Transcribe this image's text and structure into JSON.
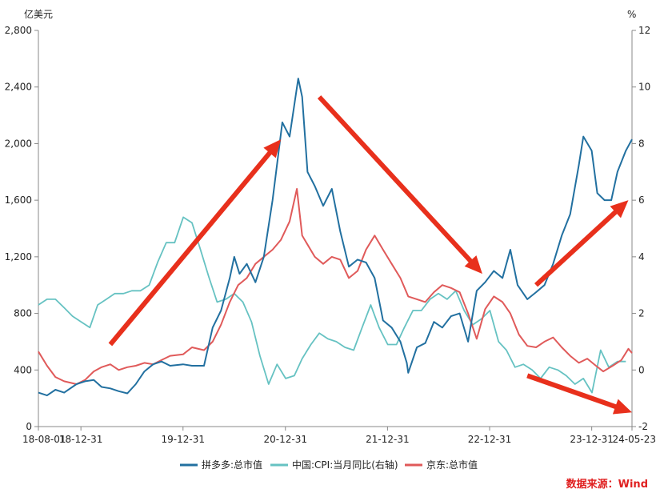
{
  "chart_data": {
    "type": "line",
    "left_unit": "亿美元",
    "right_unit": "%",
    "x_tick_labels": [
      "18-08-01",
      "18-12-31",
      "19-12-31",
      "20-12-31",
      "21-12-31",
      "22-12-31",
      "23-12-31",
      "24-05-23"
    ],
    "x_tick_dates": [
      "2018-08-01",
      "2018-12-31",
      "2019-12-31",
      "2020-12-31",
      "2021-12-31",
      "2022-12-31",
      "2023-12-31",
      "2024-05-23"
    ],
    "x_range": [
      "2018-08-01",
      "2024-05-23"
    ],
    "y_left_ticks": [
      "0",
      "400",
      "800",
      "1,200",
      "1,600",
      "2,000",
      "2,400",
      "2,800"
    ],
    "y_left_range": [
      0,
      2800
    ],
    "y_right_ticks": [
      "-2",
      "0",
      "2",
      "4",
      "6",
      "8",
      "10",
      "12"
    ],
    "y_right_range": [
      -2,
      12
    ],
    "grid": false,
    "legend_position": "bottom",
    "source": "数据来源：Wind",
    "series": [
      {
        "name": "拼多多:总市值",
        "axis": "left",
        "color": "#2270a0",
        "points": [
          [
            "2018-08-01",
            240
          ],
          [
            "2018-09-01",
            220
          ],
          [
            "2018-10-01",
            260
          ],
          [
            "2018-11-01",
            240
          ],
          [
            "2018-12-15",
            300
          ],
          [
            "2019-01-15",
            320
          ],
          [
            "2019-02-15",
            330
          ],
          [
            "2019-03-15",
            280
          ],
          [
            "2019-04-15",
            270
          ],
          [
            "2019-05-15",
            250
          ],
          [
            "2019-06-15",
            235
          ],
          [
            "2019-07-15",
            300
          ],
          [
            "2019-08-15",
            390
          ],
          [
            "2019-09-15",
            440
          ],
          [
            "2019-10-15",
            460
          ],
          [
            "2019-11-15",
            430
          ],
          [
            "2019-12-31",
            440
          ],
          [
            "2020-02-01",
            430
          ],
          [
            "2020-03-15",
            430
          ],
          [
            "2020-04-15",
            700
          ],
          [
            "2020-05-15",
            820
          ],
          [
            "2020-06-15",
            1050
          ],
          [
            "2020-07-01",
            1200
          ],
          [
            "2020-07-20",
            1080
          ],
          [
            "2020-08-15",
            1150
          ],
          [
            "2020-09-15",
            1020
          ],
          [
            "2020-10-15",
            1200
          ],
          [
            "2020-11-15",
            1600
          ],
          [
            "2020-12-20",
            2150
          ],
          [
            "2021-01-15",
            2050
          ],
          [
            "2021-02-15",
            2460
          ],
          [
            "2021-03-01",
            2330
          ],
          [
            "2021-03-20",
            1800
          ],
          [
            "2021-04-15",
            1700
          ],
          [
            "2021-05-15",
            1560
          ],
          [
            "2021-06-15",
            1680
          ],
          [
            "2021-07-15",
            1380
          ],
          [
            "2021-08-15",
            1130
          ],
          [
            "2021-09-15",
            1180
          ],
          [
            "2021-10-15",
            1160
          ],
          [
            "2021-11-15",
            1050
          ],
          [
            "2021-12-15",
            750
          ],
          [
            "2022-01-15",
            700
          ],
          [
            "2022-02-15",
            600
          ],
          [
            "2022-03-10",
            450
          ],
          [
            "2022-03-15",
            380
          ],
          [
            "2022-04-15",
            560
          ],
          [
            "2022-05-15",
            590
          ],
          [
            "2022-06-15",
            740
          ],
          [
            "2022-07-15",
            700
          ],
          [
            "2022-08-15",
            780
          ],
          [
            "2022-09-15",
            800
          ],
          [
            "2022-10-15",
            600
          ],
          [
            "2022-11-15",
            960
          ],
          [
            "2022-12-15",
            1020
          ],
          [
            "2023-01-15",
            1100
          ],
          [
            "2023-02-15",
            1050
          ],
          [
            "2023-03-15",
            1250
          ],
          [
            "2023-04-10",
            1000
          ],
          [
            "2023-05-15",
            900
          ],
          [
            "2023-06-15",
            950
          ],
          [
            "2023-07-15",
            1000
          ],
          [
            "2023-08-15",
            1150
          ],
          [
            "2023-09-15",
            1350
          ],
          [
            "2023-10-15",
            1500
          ],
          [
            "2023-11-15",
            1850
          ],
          [
            "2023-12-01",
            2050
          ],
          [
            "2023-12-31",
            1950
          ],
          [
            "2024-01-20",
            1650
          ],
          [
            "2024-02-15",
            1600
          ],
          [
            "2024-03-10",
            1600
          ],
          [
            "2024-04-01",
            1800
          ],
          [
            "2024-05-01",
            1950
          ],
          [
            "2024-05-23",
            2030
          ]
        ]
      },
      {
        "name": "中国:CPI:当月同比(右轴)",
        "axis": "right",
        "color": "#66c2c2",
        "points": [
          [
            "2018-08-01",
            2.3
          ],
          [
            "2018-09-01",
            2.5
          ],
          [
            "2018-10-01",
            2.5
          ],
          [
            "2018-11-01",
            2.2
          ],
          [
            "2018-12-01",
            1.9
          ],
          [
            "2019-01-01",
            1.7
          ],
          [
            "2019-02-01",
            1.5
          ],
          [
            "2019-03-01",
            2.3
          ],
          [
            "2019-04-01",
            2.5
          ],
          [
            "2019-05-01",
            2.7
          ],
          [
            "2019-06-01",
            2.7
          ],
          [
            "2019-07-01",
            2.8
          ],
          [
            "2019-08-01",
            2.8
          ],
          [
            "2019-09-01",
            3.0
          ],
          [
            "2019-10-01",
            3.8
          ],
          [
            "2019-11-01",
            4.5
          ],
          [
            "2019-12-01",
            4.5
          ],
          [
            "2020-01-01",
            5.4
          ],
          [
            "2020-02-01",
            5.2
          ],
          [
            "2020-03-01",
            4.3
          ],
          [
            "2020-04-01",
            3.3
          ],
          [
            "2020-05-01",
            2.4
          ],
          [
            "2020-06-01",
            2.5
          ],
          [
            "2020-07-01",
            2.7
          ],
          [
            "2020-08-01",
            2.4
          ],
          [
            "2020-09-01",
            1.7
          ],
          [
            "2020-10-01",
            0.5
          ],
          [
            "2020-11-01",
            -0.5
          ],
          [
            "2020-12-01",
            0.2
          ],
          [
            "2021-01-01",
            -0.3
          ],
          [
            "2021-02-01",
            -0.2
          ],
          [
            "2021-03-01",
            0.4
          ],
          [
            "2021-04-01",
            0.9
          ],
          [
            "2021-05-01",
            1.3
          ],
          [
            "2021-06-01",
            1.1
          ],
          [
            "2021-07-01",
            1.0
          ],
          [
            "2021-08-01",
            0.8
          ],
          [
            "2021-09-01",
            0.7
          ],
          [
            "2021-10-01",
            1.5
          ],
          [
            "2021-11-01",
            2.3
          ],
          [
            "2021-12-01",
            1.5
          ],
          [
            "2022-01-01",
            0.9
          ],
          [
            "2022-02-01",
            0.9
          ],
          [
            "2022-03-01",
            1.5
          ],
          [
            "2022-04-01",
            2.1
          ],
          [
            "2022-05-01",
            2.1
          ],
          [
            "2022-06-01",
            2.5
          ],
          [
            "2022-07-01",
            2.7
          ],
          [
            "2022-08-01",
            2.5
          ],
          [
            "2022-09-01",
            2.8
          ],
          [
            "2022-10-01",
            2.1
          ],
          [
            "2022-11-01",
            1.6
          ],
          [
            "2022-12-01",
            1.8
          ],
          [
            "2023-01-01",
            2.1
          ],
          [
            "2023-02-01",
            1.0
          ],
          [
            "2023-03-01",
            0.7
          ],
          [
            "2023-04-01",
            0.1
          ],
          [
            "2023-05-01",
            0.2
          ],
          [
            "2023-06-01",
            0.0
          ],
          [
            "2023-07-01",
            -0.3
          ],
          [
            "2023-08-01",
            0.1
          ],
          [
            "2023-09-01",
            0.0
          ],
          [
            "2023-10-01",
            -0.2
          ],
          [
            "2023-11-01",
            -0.5
          ],
          [
            "2023-12-01",
            -0.3
          ],
          [
            "2024-01-01",
            -0.8
          ],
          [
            "2024-02-01",
            0.7
          ],
          [
            "2024-03-01",
            0.1
          ],
          [
            "2024-04-01",
            0.3
          ],
          [
            "2024-05-01",
            0.3
          ]
        ]
      },
      {
        "name": "京东:总市值",
        "axis": "left",
        "color": "#e05a5a",
        "points": [
          [
            "2018-08-01",
            530
          ],
          [
            "2018-09-01",
            430
          ],
          [
            "2018-10-01",
            350
          ],
          [
            "2018-11-01",
            320
          ],
          [
            "2018-12-15",
            300
          ],
          [
            "2019-01-15",
            330
          ],
          [
            "2019-02-15",
            390
          ],
          [
            "2019-03-15",
            420
          ],
          [
            "2019-04-15",
            440
          ],
          [
            "2019-05-15",
            400
          ],
          [
            "2019-06-15",
            420
          ],
          [
            "2019-07-15",
            430
          ],
          [
            "2019-08-15",
            450
          ],
          [
            "2019-09-15",
            440
          ],
          [
            "2019-10-15",
            470
          ],
          [
            "2019-11-15",
            500
          ],
          [
            "2019-12-31",
            510
          ],
          [
            "2020-02-01",
            560
          ],
          [
            "2020-03-15",
            540
          ],
          [
            "2020-04-15",
            600
          ],
          [
            "2020-05-15",
            720
          ],
          [
            "2020-06-15",
            880
          ],
          [
            "2020-07-15",
            1000
          ],
          [
            "2020-08-15",
            1050
          ],
          [
            "2020-09-15",
            1150
          ],
          [
            "2020-10-15",
            1200
          ],
          [
            "2020-11-15",
            1250
          ],
          [
            "2020-12-15",
            1320
          ],
          [
            "2021-01-15",
            1450
          ],
          [
            "2021-02-10",
            1680
          ],
          [
            "2021-03-01",
            1350
          ],
          [
            "2021-04-15",
            1200
          ],
          [
            "2021-05-15",
            1150
          ],
          [
            "2021-06-15",
            1200
          ],
          [
            "2021-07-15",
            1180
          ],
          [
            "2021-08-15",
            1050
          ],
          [
            "2021-09-15",
            1100
          ],
          [
            "2021-10-15",
            1250
          ],
          [
            "2021-11-15",
            1350
          ],
          [
            "2021-12-15",
            1250
          ],
          [
            "2022-01-15",
            1150
          ],
          [
            "2022-02-15",
            1050
          ],
          [
            "2022-03-15",
            920
          ],
          [
            "2022-04-15",
            900
          ],
          [
            "2022-05-15",
            880
          ],
          [
            "2022-06-15",
            950
          ],
          [
            "2022-07-15",
            1000
          ],
          [
            "2022-08-15",
            980
          ],
          [
            "2022-09-15",
            950
          ],
          [
            "2022-10-15",
            800
          ],
          [
            "2022-11-15",
            620
          ],
          [
            "2022-12-15",
            830
          ],
          [
            "2023-01-15",
            920
          ],
          [
            "2023-02-15",
            880
          ],
          [
            "2023-03-15",
            800
          ],
          [
            "2023-04-15",
            650
          ],
          [
            "2023-05-15",
            570
          ],
          [
            "2023-06-15",
            560
          ],
          [
            "2023-07-15",
            600
          ],
          [
            "2023-08-15",
            630
          ],
          [
            "2023-09-15",
            560
          ],
          [
            "2023-10-15",
            500
          ],
          [
            "2023-11-15",
            450
          ],
          [
            "2023-12-15",
            480
          ],
          [
            "2024-01-15",
            430
          ],
          [
            "2024-02-10",
            390
          ],
          [
            "2024-03-15",
            430
          ],
          [
            "2024-04-15",
            470
          ],
          [
            "2024-05-10",
            550
          ],
          [
            "2024-05-23",
            520
          ]
        ]
      }
    ],
    "annotations": [
      {
        "type": "arrow",
        "color": "#e8301c",
        "from": [
          "2019-04-15",
          580
        ],
        "to": [
          "2020-12-15",
          2030
        ]
      },
      {
        "type": "arrow",
        "color": "#e8301c",
        "from": [
          "2021-05-01",
          2330
        ],
        "to": [
          "2022-12-05",
          1080
        ]
      },
      {
        "type": "arrow",
        "color": "#e8301c",
        "from": [
          "2023-06-15",
          1000
        ],
        "to": [
          "2024-05-10",
          1600
        ]
      },
      {
        "type": "arrow",
        "color": "#e8301c",
        "from": [
          "2023-05-15",
          360
        ],
        "to": [
          "2024-05-23",
          100
        ]
      }
    ]
  }
}
